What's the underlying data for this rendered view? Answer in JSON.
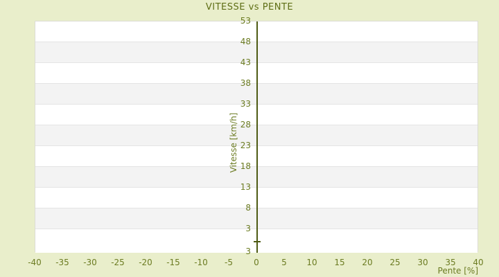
{
  "colors": {
    "background": "#e9eecb",
    "plot_background": "#ffffff",
    "band_fill": "#f3f3f3",
    "plot_border": "#dcdcd4",
    "gridline": "#e4e4e4",
    "title_text": "#5e6e15",
    "tick_text": "#6b7b21",
    "axis_line": "#4d5a13"
  },
  "chart_data": {
    "type": "scatter",
    "title": "VITESSE vs PENTE",
    "xlabel": "Pente [%]",
    "ylabel": "Vitesse [km/h]",
    "x_ticks": [
      -40,
      -35,
      -30,
      -25,
      -20,
      -15,
      -10,
      -5,
      0,
      5,
      10,
      15,
      20,
      25,
      30,
      35,
      40
    ],
    "y_ticks": [
      53,
      48,
      43,
      38,
      33,
      28,
      23,
      18,
      13,
      8,
      3
    ],
    "y_axis_bottom_edge_label": "3",
    "xlim": [
      -40,
      40
    ],
    "ylim": [
      -2.7,
      53
    ],
    "y_gridline_step": 5,
    "grid": "horizontal-alternating-bands",
    "legend": "none",
    "series": [],
    "axis_line": {
      "x": 0,
      "spans_full_height": true,
      "tick_at_y": 0
    }
  }
}
